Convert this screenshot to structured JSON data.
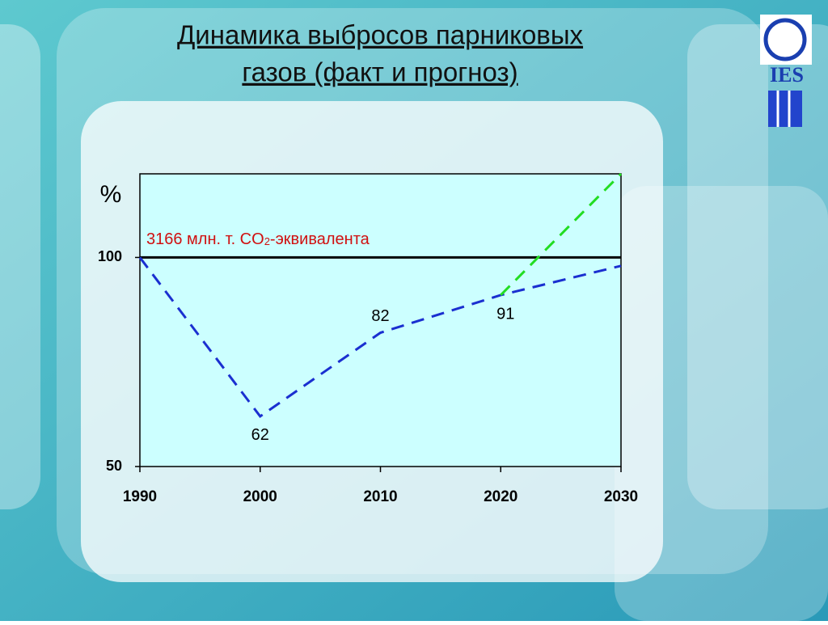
{
  "chart_data": {
    "type": "line",
    "title": [
      "Динамика выбросов парниковых",
      "газов (факт и прогноз)"
    ],
    "logo_text": "IES",
    "y_label": "%",
    "annotation": [
      "3166 млн. т. CO",
      "2",
      "-эквивалента"
    ],
    "reference_line": {
      "value": 100,
      "color": "#000000"
    },
    "x": [
      1990,
      2000,
      2010,
      2020,
      2030
    ],
    "series": [
      {
        "values": [
          100,
          62,
          82,
          91,
          98
        ],
        "value_labels": [
          null,
          "62",
          "82",
          "91",
          null
        ],
        "color": "#1a2fd0"
      },
      {
        "x": [
          2020,
          2030
        ],
        "values": [
          91,
          120
        ],
        "color": "#22dd22"
      }
    ],
    "xlim": [
      1990,
      2030
    ],
    "xticks": [
      1990,
      2000,
      2010,
      2020,
      2030
    ],
    "ylim": [
      50,
      120
    ],
    "yticks": [
      50,
      100
    ],
    "background": "#ccffff"
  }
}
